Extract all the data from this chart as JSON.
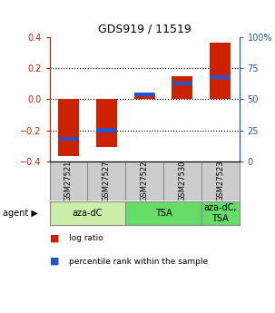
{
  "title": "GDS919 / 11519",
  "samples": [
    "GSM27521",
    "GSM27527",
    "GSM27522",
    "GSM27530",
    "GSM27523"
  ],
  "log_ratios": [
    -0.37,
    -0.31,
    0.04,
    0.15,
    0.37
  ],
  "percentile_ranks": [
    18,
    25,
    54,
    63,
    68
  ],
  "ylim_left": [
    -0.4,
    0.4
  ],
  "ylim_right": [
    0,
    100
  ],
  "yticks_left": [
    -0.4,
    -0.2,
    0.0,
    0.2,
    0.4
  ],
  "yticks_right": [
    0,
    25,
    50,
    75,
    100
  ],
  "bar_color_red": "#cc2200",
  "bar_color_blue": "#2255cc",
  "bg_color": "#ffffff",
  "plot_bg_color": "#ffffff",
  "left_axis_color": "#cc2200",
  "right_axis_color": "#2255cc",
  "legend_red_label": "log ratio",
  "legend_blue_label": "percentile rank within the sample",
  "bar_width": 0.55,
  "blue_bar_height": 0.025,
  "agent_spans": [
    {
      "start": 0,
      "end": 2,
      "label": "aza-dC",
      "color": "#cceeaa"
    },
    {
      "start": 2,
      "end": 4,
      "label": "TSA",
      "color": "#66dd66"
    },
    {
      "start": 4,
      "end": 5,
      "label": "aza-dC,\nTSA",
      "color": "#66dd66"
    }
  ],
  "sample_bg": "#cccccc",
  "hgrid_vals": [
    -0.2,
    0.0,
    0.2
  ],
  "title_fontsize": 9,
  "tick_fontsize": 7,
  "sample_fontsize": 6,
  "agent_fontsize": 7,
  "legend_fontsize": 6.5
}
